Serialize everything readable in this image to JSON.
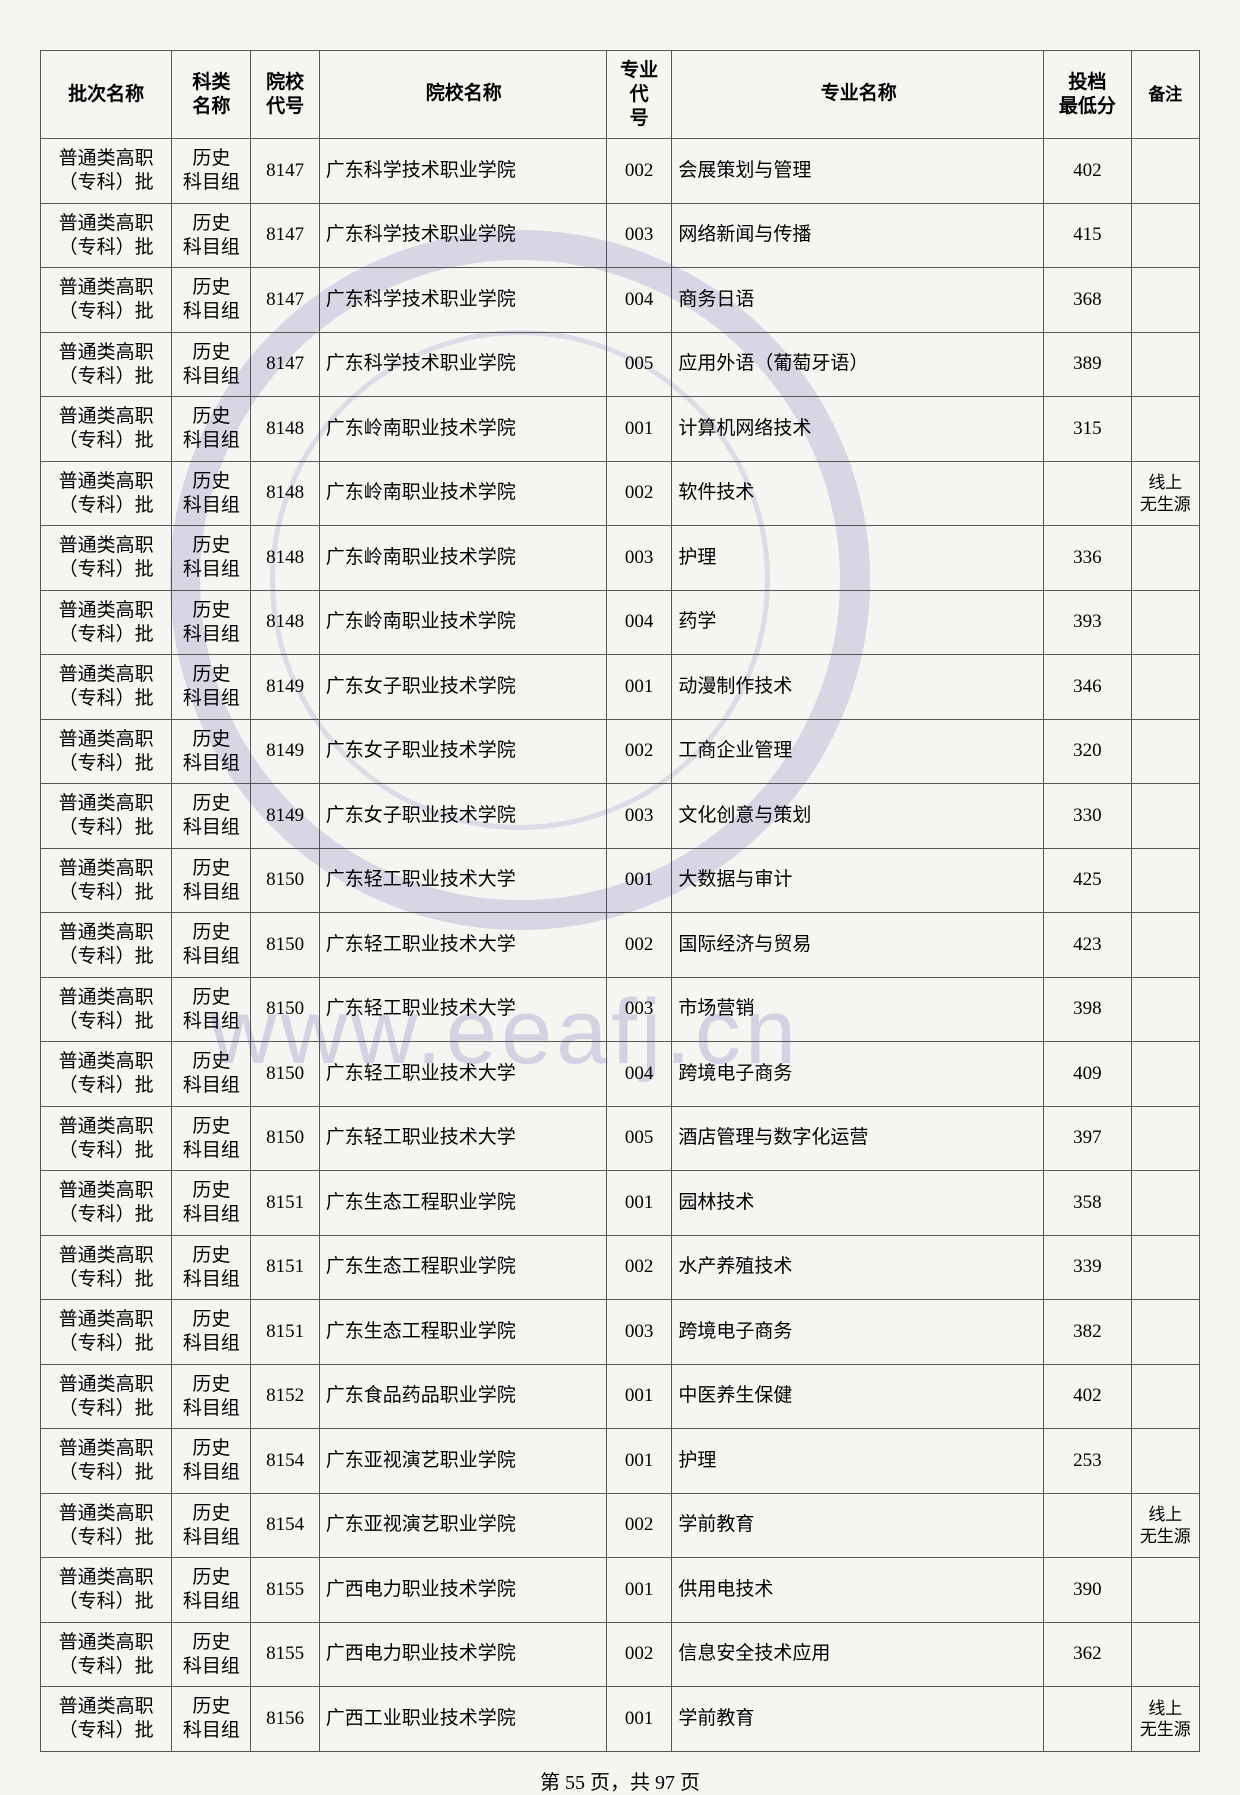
{
  "table": {
    "headers": {
      "batch": "批次名称",
      "subject": "科类\n名称",
      "schoolcode": "院校\n代号",
      "schoolname": "院校名称",
      "majorcode": "专业代\n号",
      "majorname": "专业名称",
      "score": "投档\n最低分",
      "note": "备注"
    },
    "batch_text": "普通类高职\n（专科）批",
    "subject_text": "历史\n科目组",
    "rows": [
      {
        "schoolcode": "8147",
        "schoolname": "广东科学技术职业学院",
        "majorcode": "002",
        "majorname": "会展策划与管理",
        "score": "402",
        "note": ""
      },
      {
        "schoolcode": "8147",
        "schoolname": "广东科学技术职业学院",
        "majorcode": "003",
        "majorname": "网络新闻与传播",
        "score": "415",
        "note": ""
      },
      {
        "schoolcode": "8147",
        "schoolname": "广东科学技术职业学院",
        "majorcode": "004",
        "majorname": "商务日语",
        "score": "368",
        "note": ""
      },
      {
        "schoolcode": "8147",
        "schoolname": "广东科学技术职业学院",
        "majorcode": "005",
        "majorname": "应用外语（葡萄牙语）",
        "score": "389",
        "note": ""
      },
      {
        "schoolcode": "8148",
        "schoolname": "广东岭南职业技术学院",
        "majorcode": "001",
        "majorname": "计算机网络技术",
        "score": "315",
        "note": ""
      },
      {
        "schoolcode": "8148",
        "schoolname": "广东岭南职业技术学院",
        "majorcode": "002",
        "majorname": "软件技术",
        "score": "",
        "note": "线上\n无生源"
      },
      {
        "schoolcode": "8148",
        "schoolname": "广东岭南职业技术学院",
        "majorcode": "003",
        "majorname": "护理",
        "score": "336",
        "note": ""
      },
      {
        "schoolcode": "8148",
        "schoolname": "广东岭南职业技术学院",
        "majorcode": "004",
        "majorname": "药学",
        "score": "393",
        "note": ""
      },
      {
        "schoolcode": "8149",
        "schoolname": "广东女子职业技术学院",
        "majorcode": "001",
        "majorname": "动漫制作技术",
        "score": "346",
        "note": ""
      },
      {
        "schoolcode": "8149",
        "schoolname": "广东女子职业技术学院",
        "majorcode": "002",
        "majorname": "工商企业管理",
        "score": "320",
        "note": ""
      },
      {
        "schoolcode": "8149",
        "schoolname": "广东女子职业技术学院",
        "majorcode": "003",
        "majorname": "文化创意与策划",
        "score": "330",
        "note": ""
      },
      {
        "schoolcode": "8150",
        "schoolname": "广东轻工职业技术大学",
        "majorcode": "001",
        "majorname": "大数据与审计",
        "score": "425",
        "note": ""
      },
      {
        "schoolcode": "8150",
        "schoolname": "广东轻工职业技术大学",
        "majorcode": "002",
        "majorname": "国际经济与贸易",
        "score": "423",
        "note": ""
      },
      {
        "schoolcode": "8150",
        "schoolname": "广东轻工职业技术大学",
        "majorcode": "003",
        "majorname": "市场营销",
        "score": "398",
        "note": ""
      },
      {
        "schoolcode": "8150",
        "schoolname": "广东轻工职业技术大学",
        "majorcode": "004",
        "majorname": "跨境电子商务",
        "score": "409",
        "note": ""
      },
      {
        "schoolcode": "8150",
        "schoolname": "广东轻工职业技术大学",
        "majorcode": "005",
        "majorname": "酒店管理与数字化运营",
        "score": "397",
        "note": ""
      },
      {
        "schoolcode": "8151",
        "schoolname": "广东生态工程职业学院",
        "majorcode": "001",
        "majorname": "园林技术",
        "score": "358",
        "note": ""
      },
      {
        "schoolcode": "8151",
        "schoolname": "广东生态工程职业学院",
        "majorcode": "002",
        "majorname": "水产养殖技术",
        "score": "339",
        "note": ""
      },
      {
        "schoolcode": "8151",
        "schoolname": "广东生态工程职业学院",
        "majorcode": "003",
        "majorname": "跨境电子商务",
        "score": "382",
        "note": ""
      },
      {
        "schoolcode": "8152",
        "schoolname": "广东食品药品职业学院",
        "majorcode": "001",
        "majorname": "中医养生保健",
        "score": "402",
        "note": ""
      },
      {
        "schoolcode": "8154",
        "schoolname": "广东亚视演艺职业学院",
        "majorcode": "001",
        "majorname": "护理",
        "score": "253",
        "note": ""
      },
      {
        "schoolcode": "8154",
        "schoolname": "广东亚视演艺职业学院",
        "majorcode": "002",
        "majorname": "学前教育",
        "score": "",
        "note": "线上\n无生源"
      },
      {
        "schoolcode": "8155",
        "schoolname": "广西电力职业技术学院",
        "majorcode": "001",
        "majorname": "供用电技术",
        "score": "390",
        "note": ""
      },
      {
        "schoolcode": "8155",
        "schoolname": "广西电力职业技术学院",
        "majorcode": "002",
        "majorname": "信息安全技术应用",
        "score": "362",
        "note": ""
      },
      {
        "schoolcode": "8156",
        "schoolname": "广西工业职业技术学院",
        "majorcode": "001",
        "majorname": "学前教育",
        "score": "",
        "note": "线上\n无生源"
      }
    ]
  },
  "pager": {
    "text": "第 55 页，共 97 页"
  },
  "colors": {
    "border": "#555555",
    "text": "#222222",
    "background": "#f5f5f2",
    "watermark": "rgba(120,100,180,0.22)"
  }
}
